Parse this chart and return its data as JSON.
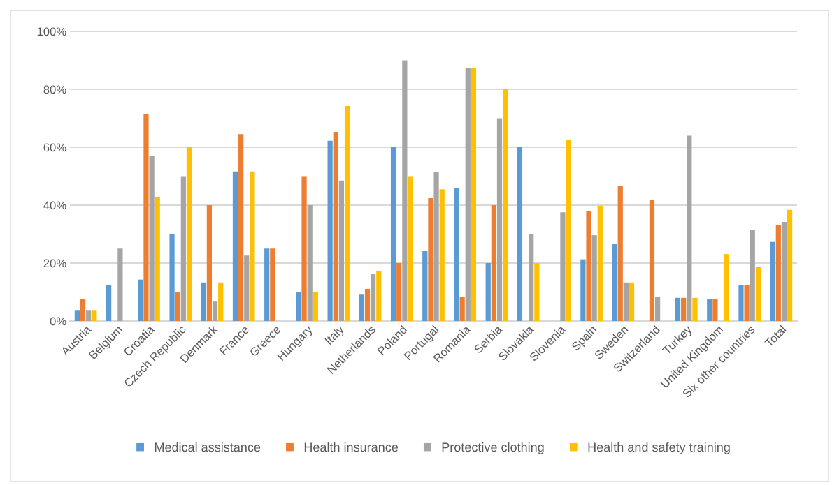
{
  "chart_data": {
    "type": "bar",
    "categories": [
      "Austria",
      "Belgium",
      "Croatia",
      "Czech Republic",
      "Denmark",
      "France",
      "Greece",
      "Hungary",
      "Italy",
      "Netherlands",
      "Poland",
      "Portugal",
      "Romania",
      "Serbia",
      "Slovakia",
      "Slovenia",
      "Spain",
      "Sweden",
      "Switzerland",
      "Turkey",
      "United Kingdom",
      "Six other countries",
      "Total"
    ],
    "series": [
      {
        "name": "Medical assistance",
        "color": "#5b9bd5",
        "values": [
          3.8,
          12.5,
          14.3,
          30,
          13.3,
          51.6,
          25,
          10,
          62.2,
          9.1,
          60,
          24.2,
          45.8,
          20,
          60,
          0,
          21.3,
          26.7,
          0,
          8,
          7.7,
          12.5,
          27.3
        ]
      },
      {
        "name": "Health insurance",
        "color": "#ed7d31",
        "values": [
          7.7,
          0,
          71.4,
          10,
          40,
          64.5,
          25,
          50,
          65.3,
          11.1,
          20,
          42.4,
          8.3,
          40,
          0,
          0,
          38,
          46.7,
          41.7,
          8,
          7.7,
          12.5,
          33.1
        ]
      },
      {
        "name": "Protective clothing",
        "color": "#a5a5a5",
        "values": [
          3.8,
          25,
          57.1,
          50,
          6.7,
          22.6,
          0,
          40,
          48.5,
          16.2,
          90,
          51.5,
          87.5,
          70,
          30,
          37.5,
          29.6,
          13.3,
          8.3,
          64,
          0,
          31.3,
          34.2
        ]
      },
      {
        "name": "Health and safety training",
        "color": "#ffc000",
        "values": [
          3.8,
          0,
          42.9,
          60,
          13.3,
          51.6,
          0,
          10,
          74.2,
          17.2,
          50,
          45.5,
          87.5,
          80,
          20,
          62.5,
          39.8,
          13.3,
          0,
          8,
          23.1,
          18.8,
          38.4
        ]
      }
    ],
    "ylim": [
      0,
      100
    ],
    "yticks": [
      {
        "value": 0,
        "label": "0%"
      },
      {
        "value": 20,
        "label": "20%"
      },
      {
        "value": 40,
        "label": "40%"
      },
      {
        "value": 60,
        "label": "60%"
      },
      {
        "value": 80,
        "label": "80%"
      },
      {
        "value": 100,
        "label": "100%"
      }
    ],
    "grid": "y",
    "legend": "bottom"
  }
}
